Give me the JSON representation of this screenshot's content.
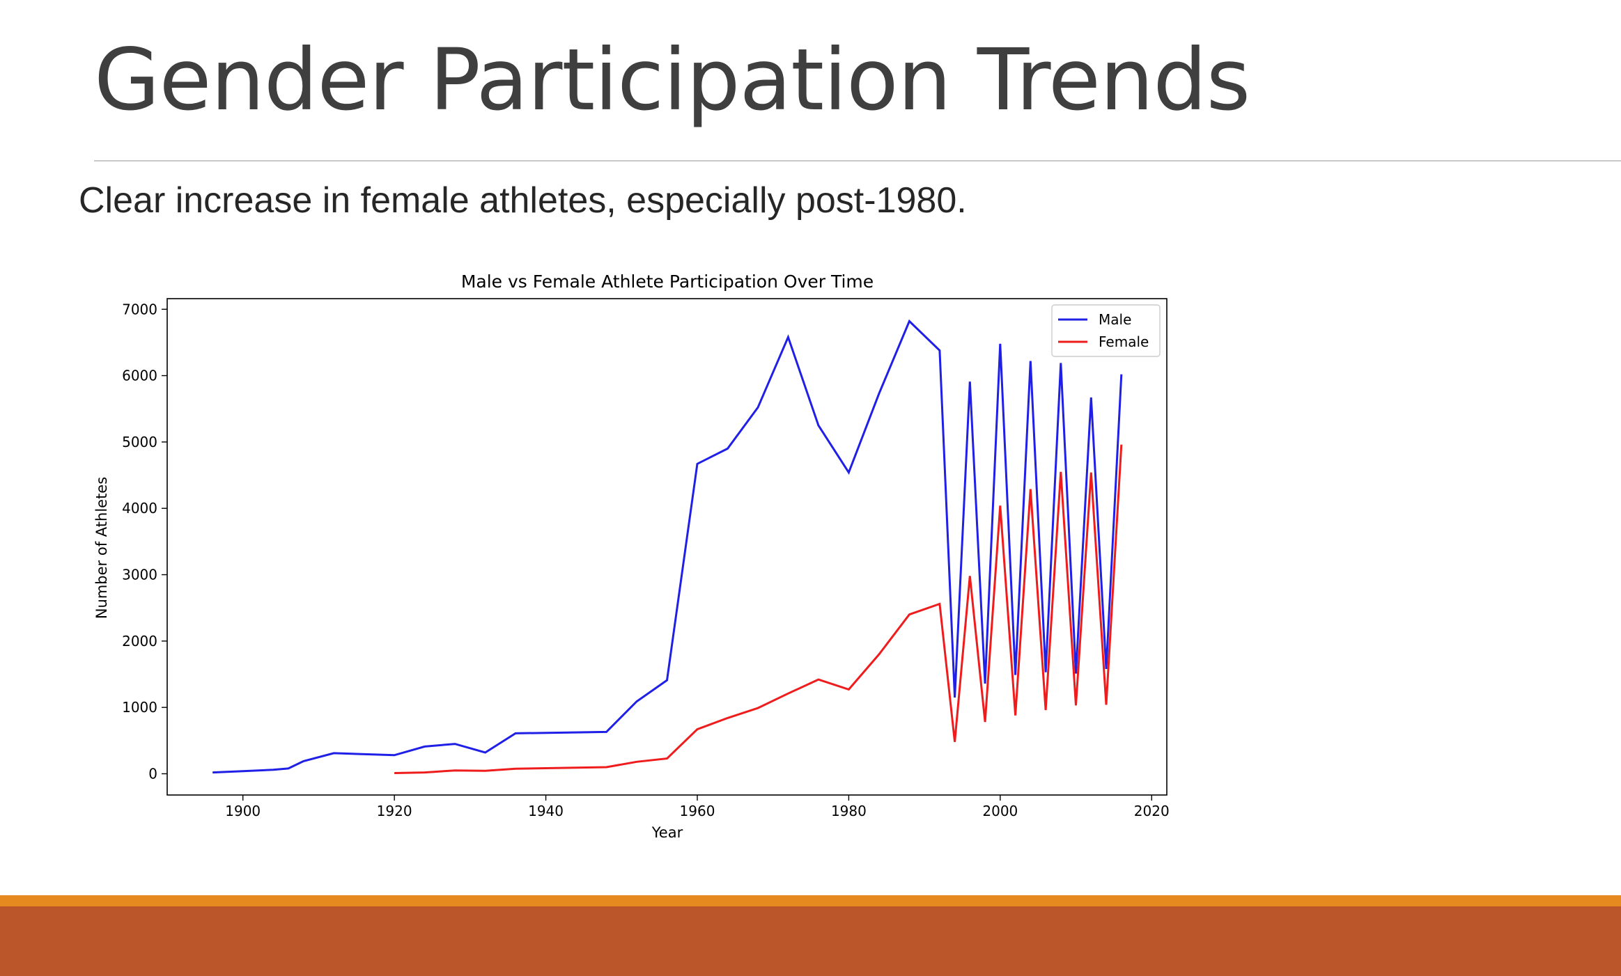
{
  "slide": {
    "title": "Gender Participation Trends",
    "subtitle": "Clear increase in female athletes, especially post-1980."
  },
  "colors": {
    "male": "#1f1fe6",
    "female": "#ee1c1c",
    "footer_stripe": "#e6891e",
    "footer_band": "#bb562b"
  },
  "chart_data": {
    "type": "line",
    "title": "Male vs Female Athlete Participation Over Time",
    "xlabel": "Year",
    "ylabel": "Number of Athletes",
    "xlim": [
      1890,
      2022
    ],
    "ylim": [
      -320,
      7160
    ],
    "xticks": [
      1900,
      1920,
      1940,
      1960,
      1980,
      2000,
      2020
    ],
    "yticks": [
      0,
      1000,
      2000,
      3000,
      4000,
      5000,
      6000,
      7000
    ],
    "grid": false,
    "legend_position": "top-right",
    "series": [
      {
        "name": "Male",
        "color": "#1f1fe6",
        "x": [
          1896,
          1900,
          1904,
          1906,
          1908,
          1912,
          1920,
          1924,
          1928,
          1932,
          1936,
          1948,
          1952,
          1956,
          1960,
          1964,
          1968,
          1972,
          1976,
          1980,
          1984,
          1988,
          1992,
          1994,
          1996,
          1998,
          2000,
          2002,
          2004,
          2006,
          2008,
          2010,
          2012,
          2014,
          2016
        ],
        "values": [
          20,
          40,
          60,
          80,
          190,
          310,
          280,
          410,
          450,
          320,
          610,
          630,
          1090,
          1410,
          4670,
          4900,
          5520,
          6580,
          5250,
          4540,
          5730,
          6820,
          6380,
          1150,
          5910,
          1360,
          6480,
          1490,
          6220,
          1530,
          6190,
          1510,
          5670,
          1580,
          6020
        ]
      },
      {
        "name": "Female",
        "color": "#ee1c1c",
        "x": [
          1920,
          1924,
          1928,
          1932,
          1936,
          1948,
          1952,
          1956,
          1960,
          1964,
          1968,
          1972,
          1976,
          1980,
          1984,
          1988,
          1992,
          1994,
          1996,
          1998,
          2000,
          2002,
          2004,
          2006,
          2008,
          2010,
          2012,
          2014,
          2016
        ],
        "values": [
          10,
          20,
          50,
          45,
          75,
          100,
          180,
          230,
          670,
          840,
          990,
          1210,
          1420,
          1270,
          1800,
          2400,
          2560,
          480,
          2980,
          780,
          4040,
          880,
          4290,
          960,
          4550,
          1030,
          4540,
          1040,
          4960
        ]
      }
    ]
  }
}
